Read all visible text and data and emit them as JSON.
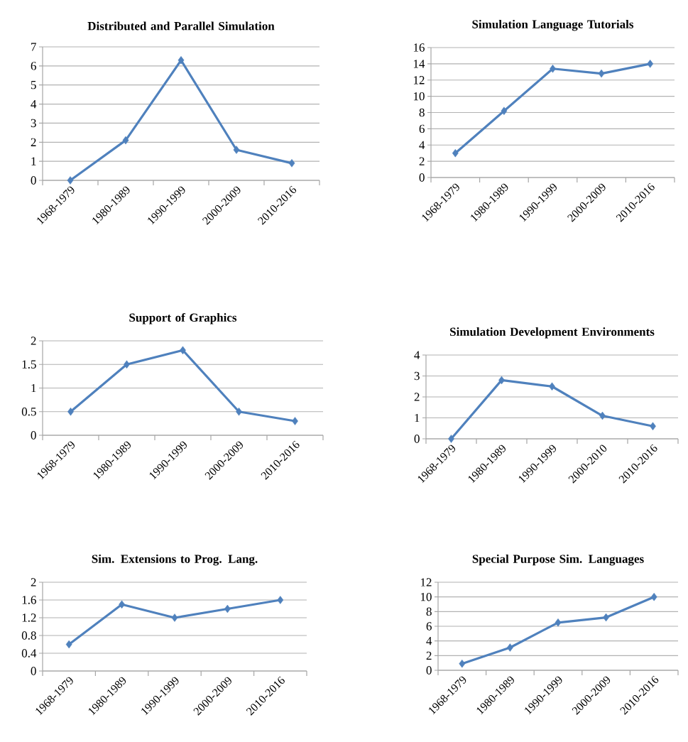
{
  "chart_data": [
    {
      "type": "line",
      "title": "Distributed and Parallel Simulation",
      "categories": [
        "1968-1979",
        "1980-1989",
        "1990-1999",
        "2000-2009",
        "2010-2016"
      ],
      "values": [
        0,
        2.1,
        6.3,
        1.6,
        0.9
      ],
      "color": "#4f81bd",
      "ylim": [
        0,
        7
      ],
      "yticks": [
        0,
        1,
        2,
        3,
        4,
        5,
        6,
        7
      ],
      "grid": "y",
      "marker": "diamond"
    },
    {
      "type": "line",
      "title": "Simulation Language Tutorials",
      "categories": [
        "1968-1979",
        "1980-1989",
        "1990-1999",
        "2000-2009",
        "2010-2016"
      ],
      "values": [
        3,
        8.2,
        13.4,
        12.8,
        14
      ],
      "color": "#4f81bd",
      "ylim": [
        0,
        16
      ],
      "yticks": [
        0,
        2,
        4,
        6,
        8,
        10,
        12,
        14,
        16
      ],
      "grid": "y",
      "marker": "diamond"
    },
    {
      "type": "line",
      "title": "Support of Graphics",
      "categories": [
        "1968-1979",
        "1980-1989",
        "1990-1999",
        "2000-2009",
        "2010-2016"
      ],
      "values": [
        0.5,
        1.5,
        1.8,
        0.5,
        0.3
      ],
      "color": "#4f81bd",
      "ylim": [
        0,
        2
      ],
      "yticks": [
        0,
        0.5,
        1,
        1.5,
        2
      ],
      "grid": "y",
      "marker": "diamond"
    },
    {
      "type": "line",
      "title": "Simulation Development Environments",
      "categories": [
        "1968-1979",
        "1980-1989",
        "1990-1999",
        "2000-2010",
        "2010-2016"
      ],
      "values": [
        0,
        2.8,
        2.5,
        1.1,
        0.6
      ],
      "color": "#4f81bd",
      "ylim": [
        0,
        4
      ],
      "yticks": [
        0,
        1,
        2,
        3,
        4
      ],
      "grid": "y",
      "marker": "diamond"
    },
    {
      "type": "line",
      "title": "Sim. Extensions to Prog. Lang.",
      "categories": [
        "1968-1979",
        "1980-1989",
        "1990-1999",
        "2000-2009",
        "2010-2016"
      ],
      "values": [
        0.6,
        1.5,
        1.2,
        1.4,
        1.6
      ],
      "color": "#4f81bd",
      "ylim": [
        0,
        2
      ],
      "yticks": [
        0,
        0.4,
        0.8,
        1.2,
        1.6,
        2
      ],
      "grid": "y",
      "marker": "diamond"
    },
    {
      "type": "line",
      "title": "Special Purpose Sim. Languages",
      "categories": [
        "1968-1979",
        "1980-1989",
        "1990-1999",
        "2000-2009",
        "2010-2016"
      ],
      "values": [
        0.9,
        3.1,
        6.5,
        7.2,
        10
      ],
      "color": "#4f81bd",
      "ylim": [
        0,
        12
      ],
      "yticks": [
        0,
        2,
        4,
        6,
        8,
        10,
        12
      ],
      "grid": "y",
      "marker": "diamond"
    }
  ]
}
